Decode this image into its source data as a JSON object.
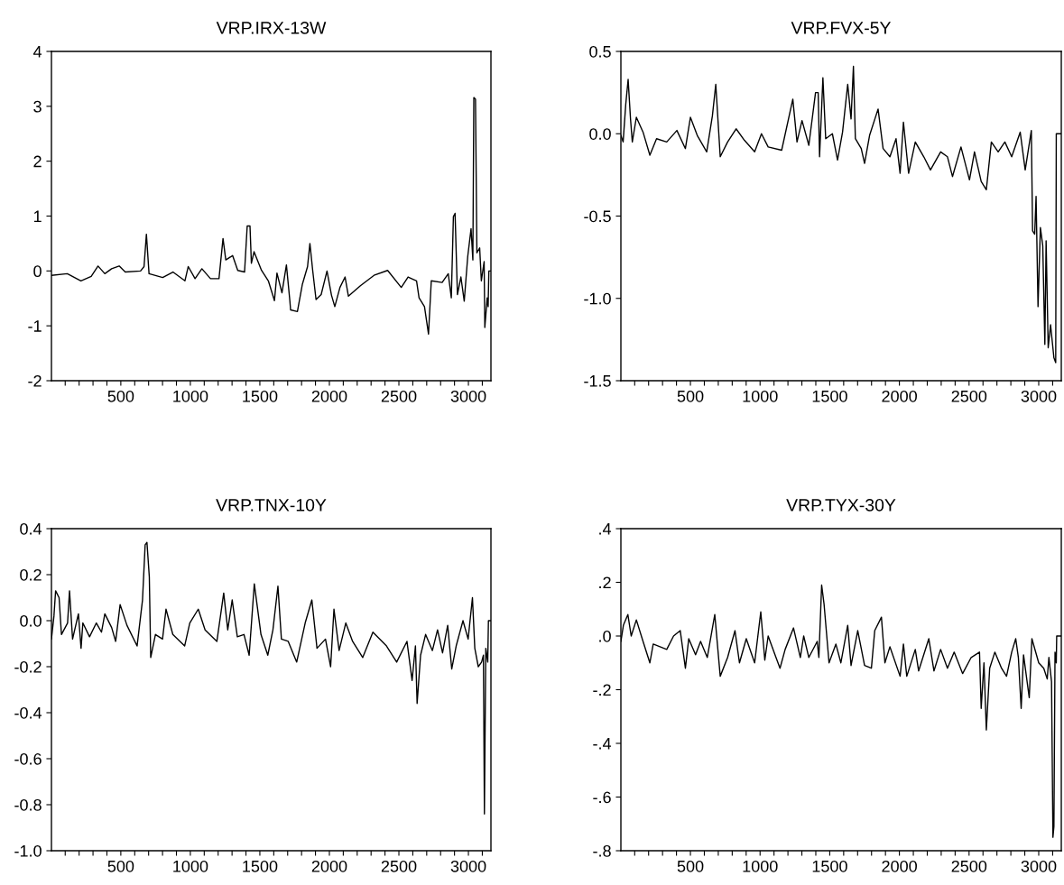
{
  "chart_data": [
    {
      "type": "line",
      "title": "VRP.IRX-13W",
      "color": "#000000",
      "grid": false,
      "legend": false,
      "xlim": [
        1,
        3162
      ],
      "ylim": [
        -2,
        4
      ],
      "yticks": [
        -2,
        -1,
        0,
        1,
        2,
        3,
        4
      ],
      "xticks": [
        {
          "value": 100,
          "label": null
        },
        {
          "value": 200,
          "label": null
        },
        {
          "value": 300,
          "label": null
        },
        {
          "value": 400,
          "label": null
        },
        500,
        {
          "value": 600,
          "label": null
        },
        {
          "value": 700,
          "label": null
        },
        {
          "value": 800,
          "label": null
        },
        {
          "value": 900,
          "label": null
        },
        1000,
        {
          "value": 1100,
          "label": null
        },
        {
          "value": 1200,
          "label": null
        },
        {
          "value": 1300,
          "label": null
        },
        {
          "value": 1400,
          "label": null
        },
        1500,
        {
          "value": 1600,
          "label": null
        },
        {
          "value": 1700,
          "label": null
        },
        {
          "value": 1800,
          "label": null
        },
        {
          "value": 1900,
          "label": null
        },
        2000,
        {
          "value": 2100,
          "label": null
        },
        {
          "value": 2200,
          "label": null
        },
        {
          "value": 2300,
          "label": null
        },
        {
          "value": 2400,
          "label": null
        },
        2500,
        {
          "value": 2600,
          "label": null
        },
        {
          "value": 2700,
          "label": null
        },
        {
          "value": 2800,
          "label": null
        },
        {
          "value": 2900,
          "label": null
        },
        3000,
        {
          "value": 3100,
          "label": null
        }
      ],
      "x": [
        1,
        115,
        213,
        287,
        336,
        385,
        434,
        488,
        532,
        642,
        667,
        684,
        703,
        801,
        875,
        961,
        985,
        1034,
        1083,
        1145,
        1206,
        1235,
        1255,
        1304,
        1341,
        1390,
        1409,
        1429,
        1439,
        1458,
        1512,
        1561,
        1605,
        1623,
        1659,
        1691,
        1716,
        1721,
        1770,
        1806,
        1843,
        1860,
        1880,
        1904,
        1941,
        1983,
        2015,
        2039,
        2076,
        2113,
        2137,
        2223,
        2321,
        2419,
        2517,
        2566,
        2627,
        2645,
        2684,
        2713,
        2733,
        2811,
        2855,
        2877,
        2892,
        2904,
        2921,
        2946,
        2970,
        2995,
        3019,
        3032,
        3039,
        3051,
        3061,
        3081,
        3093,
        3113,
        3118,
        3135,
        3142,
        3147,
        3158
      ],
      "values": [
        -0.08,
        -0.05,
        -0.18,
        -0.1,
        0.09,
        -0.05,
        0.04,
        0.09,
        -0.02,
        0,
        0.08,
        0.67,
        -0.05,
        -0.12,
        -0.02,
        -0.18,
        0.08,
        -0.14,
        0.04,
        -0.14,
        -0.14,
        0.59,
        0.2,
        0.28,
        0.01,
        -0.02,
        0.82,
        0.82,
        0.14,
        0.35,
        0.01,
        -0.18,
        -0.54,
        -0.04,
        -0.4,
        0.11,
        -0.55,
        -0.71,
        -0.74,
        -0.24,
        0.08,
        0.5,
        0.01,
        -0.52,
        -0.43,
        0,
        -0.44,
        -0.65,
        -0.3,
        -0.11,
        -0.46,
        -0.27,
        -0.08,
        0.01,
        -0.3,
        -0.11,
        -0.18,
        -0.49,
        -0.65,
        -1.15,
        -0.18,
        -0.21,
        -0.05,
        -0.49,
        0.99,
        1.05,
        -0.43,
        -0.11,
        -0.55,
        0.26,
        0.77,
        0.2,
        3.16,
        3.13,
        0.33,
        0.42,
        -0.18,
        0.17,
        -1.03,
        -0.49,
        -0.65,
        0,
        0
      ]
    },
    {
      "type": "line",
      "title": "VRP.FVX-5Y",
      "color": "#000000",
      "grid": false,
      "legend": false,
      "xlim": [
        1,
        3162
      ],
      "ylim": [
        -1.5,
        0.5
      ],
      "yticks": [
        {
          "value": -1.5,
          "label": "-1.5"
        },
        {
          "value": -1,
          "label": "-1.0"
        },
        {
          "value": -0.5,
          "label": "-0.5"
        },
        {
          "value": 0,
          "label": "0.0"
        },
        {
          "value": 0.5,
          "label": "0.5"
        }
      ],
      "xticks": [
        {
          "value": 100,
          "label": null
        },
        {
          "value": 200,
          "label": null
        },
        {
          "value": 300,
          "label": null
        },
        {
          "value": 400,
          "label": null
        },
        500,
        {
          "value": 600,
          "label": null
        },
        {
          "value": 700,
          "label": null
        },
        {
          "value": 800,
          "label": null
        },
        {
          "value": 900,
          "label": null
        },
        1000,
        {
          "value": 1100,
          "label": null
        },
        {
          "value": 1200,
          "label": null
        },
        {
          "value": 1300,
          "label": null
        },
        {
          "value": 1400,
          "label": null
        },
        1500,
        {
          "value": 1600,
          "label": null
        },
        {
          "value": 1700,
          "label": null
        },
        {
          "value": 1800,
          "label": null
        },
        {
          "value": 1900,
          "label": null
        },
        2000,
        {
          "value": 2100,
          "label": null
        },
        {
          "value": 2200,
          "label": null
        },
        {
          "value": 2300,
          "label": null
        },
        {
          "value": 2400,
          "label": null
        },
        2500,
        {
          "value": 2600,
          "label": null
        },
        {
          "value": 2700,
          "label": null
        },
        {
          "value": 2800,
          "label": null
        },
        {
          "value": 2900,
          "label": null
        },
        3000,
        {
          "value": 3100,
          "label": null
        }
      ],
      "x": [
        1,
        17,
        36,
        53,
        70,
        83,
        112,
        160,
        209,
        257,
        330,
        403,
        464,
        500,
        549,
        617,
        658,
        682,
        714,
        767,
        828,
        888,
        961,
        1010,
        1058,
        1155,
        1235,
        1265,
        1301,
        1350,
        1398,
        1417,
        1427,
        1451,
        1471,
        1519,
        1556,
        1592,
        1629,
        1653,
        1670,
        1684,
        1726,
        1750,
        1786,
        1847,
        1883,
        1932,
        1976,
        2005,
        2029,
        2066,
        2114,
        2175,
        2223,
        2296,
        2345,
        2381,
        2442,
        2503,
        2539,
        2587,
        2624,
        2660,
        2709,
        2757,
        2806,
        2867,
        2903,
        2947,
        2956,
        2971,
        2981,
        2995,
        3012,
        3029,
        3044,
        3053,
        3068,
        3085,
        3109,
        3122,
        3126,
        3158
      ],
      "values": [
        -0.01,
        -0.05,
        0.18,
        0.33,
        0.09,
        -0.05,
        0.1,
        0.01,
        -0.13,
        -0.03,
        -0.05,
        0.02,
        -0.09,
        0.1,
        -0.01,
        -0.11,
        0.11,
        0.3,
        -0.14,
        -0.05,
        0.03,
        -0.04,
        -0.11,
        0,
        -0.08,
        -0.1,
        0.21,
        -0.05,
        0.08,
        -0.07,
        0.25,
        0.25,
        -0.14,
        0.34,
        -0.03,
        0,
        -0.16,
        0.01,
        0.3,
        0.09,
        0.41,
        -0.03,
        -0.09,
        -0.18,
        -0.01,
        0.15,
        -0.09,
        -0.14,
        -0.03,
        -0.24,
        0.07,
        -0.24,
        -0.05,
        -0.14,
        -0.22,
        -0.11,
        -0.14,
        -0.26,
        -0.08,
        -0.28,
        -0.11,
        -0.29,
        -0.34,
        -0.05,
        -0.11,
        -0.05,
        -0.14,
        0.01,
        -0.22,
        0.02,
        -0.59,
        -0.61,
        -0.38,
        -1.05,
        -0.57,
        -0.68,
        -1.28,
        -0.65,
        -1.3,
        -1.16,
        -1.36,
        -1.39,
        0,
        0
      ]
    },
    {
      "type": "line",
      "title": "VRP.TNX-10Y",
      "color": "#000000",
      "grid": false,
      "legend": false,
      "xlim": [
        1,
        3162
      ],
      "ylim": [
        -1,
        0.4
      ],
      "yticks": [
        {
          "value": -1,
          "label": "-1.0"
        },
        {
          "value": -0.8,
          "label": "-0.8"
        },
        {
          "value": -0.6,
          "label": "-0.6"
        },
        {
          "value": -0.4,
          "label": "-0.4"
        },
        {
          "value": -0.2,
          "label": "-0.2"
        },
        {
          "value": 0,
          "label": "0.0"
        },
        {
          "value": 0.2,
          "label": "0.2"
        },
        {
          "value": 0.4,
          "label": "0.4"
        }
      ],
      "xticks": [
        {
          "value": 100,
          "label": null
        },
        {
          "value": 200,
          "label": null
        },
        {
          "value": 300,
          "label": null
        },
        {
          "value": 400,
          "label": null
        },
        500,
        {
          "value": 600,
          "label": null
        },
        {
          "value": 700,
          "label": null
        },
        {
          "value": 800,
          "label": null
        },
        {
          "value": 900,
          "label": null
        },
        1000,
        {
          "value": 1100,
          "label": null
        },
        {
          "value": 1200,
          "label": null
        },
        {
          "value": 1300,
          "label": null
        },
        {
          "value": 1400,
          "label": null
        },
        1500,
        {
          "value": 1600,
          "label": null
        },
        {
          "value": 1700,
          "label": null
        },
        {
          "value": 1800,
          "label": null
        },
        {
          "value": 1900,
          "label": null
        },
        2000,
        {
          "value": 2100,
          "label": null
        },
        {
          "value": 2200,
          "label": null
        },
        {
          "value": 2300,
          "label": null
        },
        {
          "value": 2400,
          "label": null
        },
        2500,
        {
          "value": 2600,
          "label": null
        },
        {
          "value": 2700,
          "label": null
        },
        {
          "value": 2800,
          "label": null
        },
        {
          "value": 2900,
          "label": null
        },
        3000,
        {
          "value": 3100,
          "label": null
        }
      ],
      "x": [
        1,
        19,
        31,
        56,
        73,
        117,
        131,
        153,
        195,
        214,
        227,
        275,
        324,
        361,
        385,
        434,
        463,
        495,
        544,
        617,
        656,
        675,
        688,
        705,
        715,
        749,
        800,
        825,
        874,
        959,
        996,
        1057,
        1106,
        1191,
        1240,
        1269,
        1301,
        1338,
        1386,
        1423,
        1460,
        1508,
        1557,
        1594,
        1630,
        1655,
        1704,
        1765,
        1826,
        1874,
        1911,
        1972,
        2009,
        2033,
        2070,
        2118,
        2167,
        2240,
        2313,
        2411,
        2484,
        2558,
        2595,
        2619,
        2631,
        2656,
        2692,
        2741,
        2778,
        2814,
        2851,
        2880,
        2912,
        2961,
        2998,
        3029,
        3046,
        3071,
        3095,
        3108,
        3115,
        3125,
        3139,
        3144,
        3158
      ],
      "values": [
        -0.08,
        0.02,
        0.13,
        0.1,
        -0.06,
        -0.01,
        0.13,
        -0.08,
        0.03,
        -0.12,
        -0.01,
        -0.07,
        -0.01,
        -0.05,
        0.03,
        -0.03,
        -0.09,
        0.07,
        -0.02,
        -0.11,
        0.09,
        0.33,
        0.34,
        0.19,
        -0.16,
        -0.06,
        -0.08,
        0.05,
        -0.06,
        -0.11,
        -0.01,
        0.05,
        -0.04,
        -0.09,
        0.12,
        -0.04,
        0.09,
        -0.07,
        -0.06,
        -0.15,
        0.16,
        -0.06,
        -0.15,
        -0.04,
        0.15,
        -0.08,
        -0.09,
        -0.18,
        -0.01,
        0.09,
        -0.12,
        -0.08,
        -0.2,
        0.05,
        -0.13,
        -0.01,
        -0.09,
        -0.16,
        -0.05,
        -0.11,
        -0.18,
        -0.09,
        -0.26,
        -0.11,
        -0.36,
        -0.15,
        -0.06,
        -0.13,
        -0.04,
        -0.14,
        -0.02,
        -0.21,
        -0.11,
        0,
        -0.08,
        0.1,
        -0.12,
        -0.2,
        -0.18,
        -0.15,
        -0.84,
        -0.12,
        -0.18,
        0,
        0
      ]
    },
    {
      "type": "line",
      "title": "VRP.TYX-30Y",
      "color": "#000000",
      "grid": false,
      "legend": false,
      "xlim": [
        1,
        3162
      ],
      "ylim": [
        -0.8,
        0.4
      ],
      "yticks": [
        {
          "value": -0.8,
          "label": "-.8"
        },
        {
          "value": -0.6,
          "label": "-.6"
        },
        {
          "value": -0.4,
          "label": "-.4"
        },
        {
          "value": -0.2,
          "label": "-.2"
        },
        {
          "value": 0,
          "label": ".0"
        },
        {
          "value": 0.2,
          "label": ".2"
        },
        {
          "value": 0.4,
          "label": ".4"
        }
      ],
      "xticks": [
        {
          "value": 100,
          "label": null
        },
        {
          "value": 200,
          "label": null
        },
        {
          "value": 300,
          "label": null
        },
        {
          "value": 400,
          "label": null
        },
        500,
        {
          "value": 600,
          "label": null
        },
        {
          "value": 700,
          "label": null
        },
        {
          "value": 800,
          "label": null
        },
        {
          "value": 900,
          "label": null
        },
        1000,
        {
          "value": 1100,
          "label": null
        },
        {
          "value": 1200,
          "label": null
        },
        {
          "value": 1300,
          "label": null
        },
        {
          "value": 1400,
          "label": null
        },
        1500,
        {
          "value": 1600,
          "label": null
        },
        {
          "value": 1700,
          "label": null
        },
        {
          "value": 1800,
          "label": null
        },
        {
          "value": 1900,
          "label": null
        },
        2000,
        {
          "value": 2100,
          "label": null
        },
        {
          "value": 2200,
          "label": null
        },
        {
          "value": 2300,
          "label": null
        },
        {
          "value": 2400,
          "label": null
        },
        2500,
        {
          "value": 2600,
          "label": null
        },
        {
          "value": 2700,
          "label": null
        },
        {
          "value": 2800,
          "label": null
        },
        {
          "value": 2900,
          "label": null
        },
        3000,
        {
          "value": 3100,
          "label": null
        }
      ],
      "x": [
        1,
        19,
        51,
        75,
        112,
        160,
        209,
        233,
        330,
        379,
        427,
        464,
        488,
        537,
        573,
        621,
        675,
        714,
        767,
        820,
        852,
        901,
        961,
        1005,
        1034,
        1058,
        1107,
        1143,
        1180,
        1240,
        1289,
        1313,
        1350,
        1410,
        1422,
        1442,
        1459,
        1495,
        1544,
        1580,
        1629,
        1653,
        1701,
        1750,
        1799,
        1823,
        1871,
        1896,
        1932,
        2005,
        2029,
        2053,
        2114,
        2138,
        2211,
        2248,
        2296,
        2345,
        2393,
        2454,
        2515,
        2575,
        2587,
        2607,
        2624,
        2648,
        2685,
        2733,
        2769,
        2806,
        2835,
        2854,
        2874,
        2891,
        2932,
        2951,
        3000,
        3036,
        3061,
        3073,
        3092,
        3102,
        3109,
        3117,
        3126,
        3129,
        3158
      ],
      "values": [
        -0.02,
        0.04,
        0.08,
        0,
        0.06,
        -0.02,
        -0.1,
        -0.03,
        -0.05,
        0,
        0.02,
        -0.12,
        -0.01,
        -0.07,
        -0.02,
        -0.08,
        0.08,
        -0.15,
        -0.08,
        0.02,
        -0.1,
        -0.01,
        -0.1,
        0.09,
        -0.09,
        0,
        -0.07,
        -0.12,
        -0.05,
        0.03,
        -0.08,
        0,
        -0.08,
        -0.02,
        -0.08,
        0.19,
        0.12,
        -0.1,
        -0.03,
        -0.1,
        0.04,
        -0.11,
        0.02,
        -0.11,
        -0.12,
        0.02,
        0.07,
        -0.1,
        -0.04,
        -0.15,
        -0.03,
        -0.15,
        -0.05,
        -0.13,
        -0.01,
        -0.13,
        -0.05,
        -0.12,
        -0.06,
        -0.14,
        -0.08,
        -0.06,
        -0.27,
        -0.1,
        -0.35,
        -0.12,
        -0.06,
        -0.12,
        -0.15,
        -0.06,
        -0.01,
        -0.08,
        -0.27,
        -0.07,
        -0.23,
        -0.01,
        -0.1,
        -0.12,
        -0.16,
        -0.08,
        -0.17,
        -0.75,
        -0.71,
        -0.06,
        -0.1,
        0,
        0
      ]
    }
  ]
}
